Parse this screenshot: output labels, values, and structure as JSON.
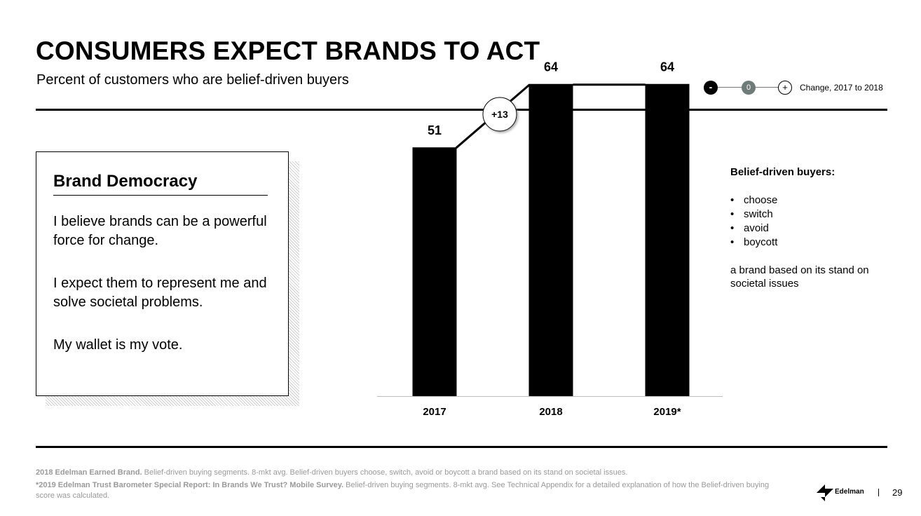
{
  "header": {
    "title": "CONSUMERS EXPECT BRANDS TO ACT",
    "subtitle": "Percent of customers who are belief-driven buyers"
  },
  "legend": {
    "minus": "-",
    "zero": "0",
    "plus": "+",
    "label": "Change, 2017 to 2018"
  },
  "card": {
    "title": "Brand Democracy",
    "paragraphs": [
      "I believe brands can be a powerful force for change.",
      "I expect them to represent me and solve societal problems.",
      "My wallet is my vote."
    ]
  },
  "chart_data": {
    "type": "bar",
    "title": "",
    "xlabel": "",
    "ylabel": "",
    "categories": [
      "2017",
      "2018",
      "2019*"
    ],
    "values": [
      51,
      64,
      64
    ],
    "ylim": [
      0,
      70
    ],
    "bar_color": "#000000",
    "grid": false,
    "annotations": [
      {
        "text": "+13",
        "between": [
          "2017",
          "2018"
        ]
      }
    ]
  },
  "notes": {
    "heading": "Belief-driven buyers:",
    "items": [
      "choose",
      "switch",
      "avoid",
      "boycott"
    ],
    "tail": "a brand based on its stand on societal issues"
  },
  "footer": {
    "line1_bold": "2018 Edelman Earned Brand.",
    "line1_rest": " Belief-driven buying segments. 8-mkt avg. Belief-driven buyers choose, switch, avoid or boycott a brand based on its stand on societal issues.",
    "line2_bold": "*2019 Edelman Trust Barometer Special Report: In Brands We Trust? Mobile Survey.",
    "line2_rest": " Belief-driven buying segments. 8-mkt avg. See Technical Appendix for a detailed explanation of how the Belief-driven buying score was calculated."
  },
  "brand": {
    "logo_text": "Edelman"
  },
  "page_number": "29",
  "colors": {
    "text": "#000000",
    "muted": "#9a9a9a",
    "legend_zero": "#6f7b78"
  }
}
